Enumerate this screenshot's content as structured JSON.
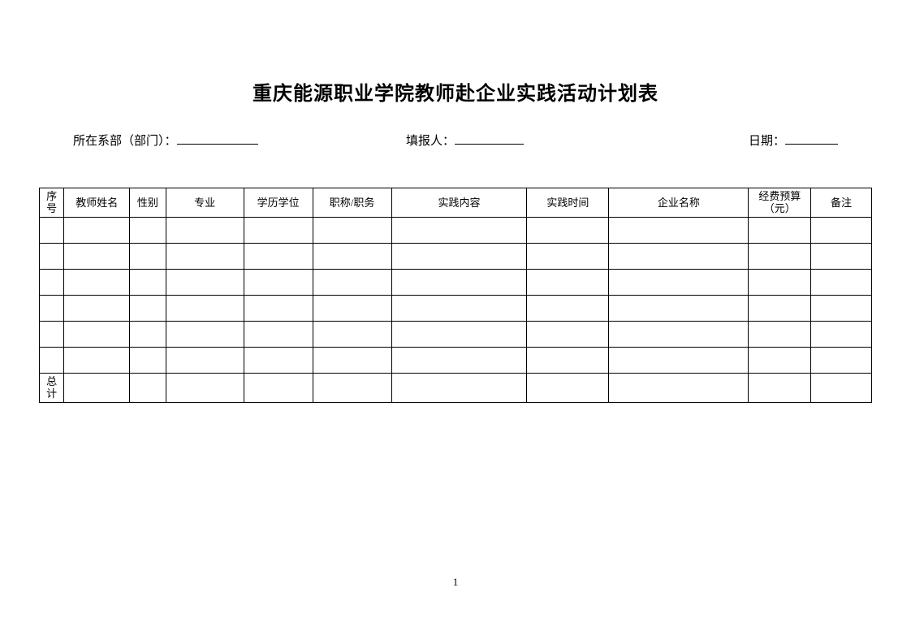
{
  "title": "重庆能源职业学院教师赴企业实践活动计划表",
  "info": {
    "dept_label": "所在系部（部门）：",
    "reporter_label": "填报人：",
    "date_label": "日期："
  },
  "table": {
    "headers": {
      "seq_line1": "序",
      "seq_line2": "号",
      "name": "教师姓名",
      "gender": "性别",
      "major": "专业",
      "edu": "学历学位",
      "title": "职称/职务",
      "content": "实践内容",
      "time": "实践时间",
      "company": "企业名称",
      "budget_line1": "经费预算",
      "budget_line2": "（元）",
      "remark": "备注"
    },
    "total_line1": "总",
    "total_line2": "计",
    "empty_row_count": 6
  },
  "page_number": "1",
  "colors": {
    "text": "#000000",
    "background": "#ffffff",
    "border": "#000000"
  }
}
